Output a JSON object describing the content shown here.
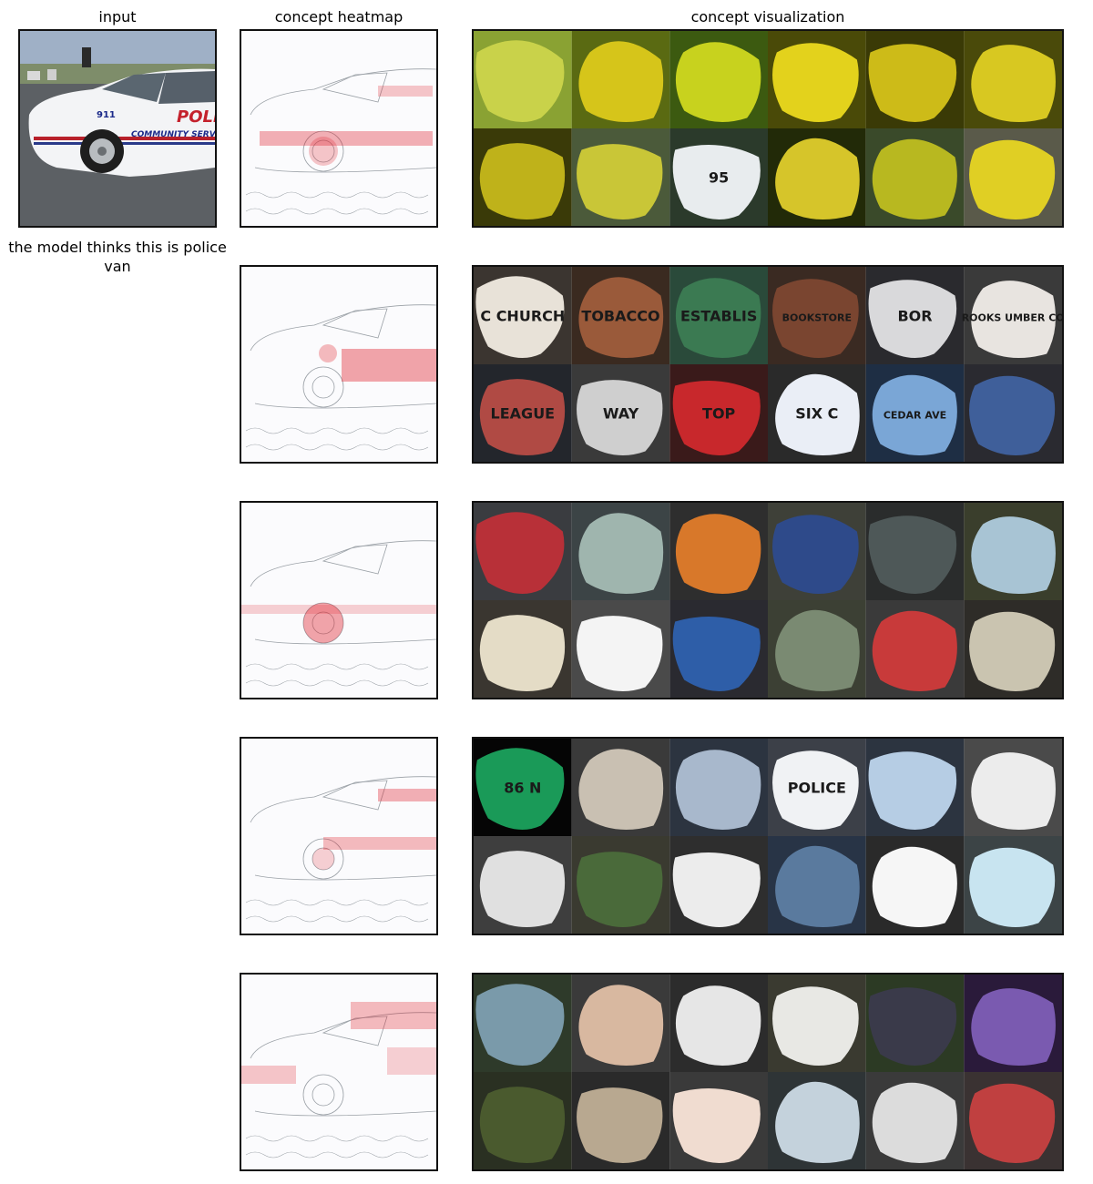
{
  "columns": {
    "input": "input",
    "heatmap": "concept heatmap",
    "visualization": "concept visualization"
  },
  "prediction_caption": "the model thinks this is police van",
  "input_image": {
    "description_icon": "police-van-photo",
    "decal_text": "POLI",
    "unit_number": "911",
    "door_text": "COMMUNITY SERVIC"
  },
  "colors": {
    "heat": "#e0202a",
    "edge": "#9aa0a6",
    "frame": "#111111"
  },
  "concepts": [
    {
      "heat_focus": "body-side",
      "tiles": [
        {
          "bg": "#8aa233",
          "blob": "#c9d24a",
          "label": ""
        },
        {
          "bg": "#5a6a12",
          "blob": "#d6c51a",
          "label": ""
        },
        {
          "bg": "#3c5a10",
          "blob": "#c8d21e",
          "label": ""
        },
        {
          "bg": "#4a4a08",
          "blob": "#e3d21c",
          "label": ""
        },
        {
          "bg": "#3a3a06",
          "blob": "#cdbb18",
          "label": ""
        },
        {
          "bg": "#4a4a0a",
          "blob": "#d8c821",
          "label": ""
        },
        {
          "bg": "#3a3a08",
          "blob": "#bfb21a",
          "label": ""
        },
        {
          "bg": "#4b5a3a",
          "blob": "#c9c637",
          "label": ""
        },
        {
          "bg": "#2b3a2b",
          "blob": "#e8ecee",
          "label": "95"
        },
        {
          "bg": "#222a08",
          "blob": "#d6c52a",
          "label": ""
        },
        {
          "bg": "#3a4a2a",
          "blob": "#b8b820",
          "label": ""
        },
        {
          "bg": "#5a5a4a",
          "blob": "#e0cf24",
          "label": ""
        }
      ]
    },
    {
      "heat_focus": "lettering",
      "tiles": [
        {
          "bg": "#3b3530",
          "blob": "#e8e2d8",
          "label": "C CHURCH"
        },
        {
          "bg": "#3a2a20",
          "blob": "#9a5a3a",
          "label": "TOBACCO"
        },
        {
          "bg": "#2a4a3a",
          "blob": "#3b7a52",
          "label": "ESTABLIS"
        },
        {
          "bg": "#3a2a22",
          "blob": "#7a4530",
          "label": "BOOKSTORE"
        },
        {
          "bg": "#2a2a2e",
          "blob": "#d9d9db",
          "label": "BOR"
        },
        {
          "bg": "#3a3a3a",
          "blob": "#e8e4e0",
          "label": "ROOKS UMBER CO"
        },
        {
          "bg": "#23262c",
          "blob": "#b04a44",
          "label": "LEAGUE"
        },
        {
          "bg": "#3a3a3a",
          "blob": "#cfcfcf",
          "label": "WAY"
        },
        {
          "bg": "#3a1a1a",
          "blob": "#c8282c",
          "label": "TOP"
        },
        {
          "bg": "#2a2a2a",
          "blob": "#eaeef6",
          "label": "SIX C"
        },
        {
          "bg": "#1e2e44",
          "blob": "#7aa6d6",
          "label": "CEDAR AVE"
        },
        {
          "bg": "#2a2a30",
          "blob": "#3f5f9a",
          "label": ""
        }
      ]
    },
    {
      "heat_focus": "wheel",
      "tiles": [
        {
          "bg": "#3a3c40",
          "blob": "#b83038",
          "label": ""
        },
        {
          "bg": "#3c4446",
          "blob": "#9fb5ae",
          "label": ""
        },
        {
          "bg": "#2e2e2e",
          "blob": "#d8782a",
          "label": ""
        },
        {
          "bg": "#3e4038",
          "blob": "#2e4a8a",
          "label": ""
        },
        {
          "bg": "#2a2c2c",
          "blob": "#4e5858",
          "label": ""
        },
        {
          "bg": "#3a3e2c",
          "blob": "#a8c4d4",
          "label": ""
        },
        {
          "bg": "#3a3630",
          "blob": "#e4dcc6",
          "label": ""
        },
        {
          "bg": "#4a4a4a",
          "blob": "#f4f4f4",
          "label": ""
        },
        {
          "bg": "#2a2a30",
          "blob": "#2e5ea8",
          "label": ""
        },
        {
          "bg": "#3c4034",
          "blob": "#7a8a72",
          "label": ""
        },
        {
          "bg": "#3a3a3a",
          "blob": "#c83a3a",
          "label": ""
        },
        {
          "bg": "#2e2c28",
          "blob": "#cac4b0",
          "label": ""
        }
      ]
    },
    {
      "heat_focus": "light-bar",
      "tiles": [
        {
          "bg": "#050505",
          "blob": "#1a9a58",
          "label": "86 N"
        },
        {
          "bg": "#3a3a3a",
          "blob": "#c9c0b2",
          "label": ""
        },
        {
          "bg": "#2c3440",
          "blob": "#a8b8cc",
          "label": ""
        },
        {
          "bg": "#3c4048",
          "blob": "#f0f2f4",
          "label": "POLICE"
        },
        {
          "bg": "#2c3440",
          "blob": "#b6cde4",
          "label": ""
        },
        {
          "bg": "#4a4a4a",
          "blob": "#ececec",
          "label": ""
        },
        {
          "bg": "#3e3e3e",
          "blob": "#e0e0e0",
          "label": ""
        },
        {
          "bg": "#3a3a30",
          "blob": "#4a6a3a",
          "label": ""
        },
        {
          "bg": "#2e2e2e",
          "blob": "#ececec",
          "label": ""
        },
        {
          "bg": "#283446",
          "blob": "#5a7a9e",
          "label": ""
        },
        {
          "bg": "#2a2a2a",
          "blob": "#f6f6f6",
          "label": ""
        },
        {
          "bg": "#3c4446",
          "blob": "#c8e4f0",
          "label": ""
        }
      ]
    },
    {
      "heat_focus": "roof-rear",
      "tiles": [
        {
          "bg": "#2e3a2a",
          "blob": "#7a9aaa",
          "label": ""
        },
        {
          "bg": "#3a3a3a",
          "blob": "#d8b8a0",
          "label": ""
        },
        {
          "bg": "#2c2c2c",
          "blob": "#e6e6e6",
          "label": ""
        },
        {
          "bg": "#3a3a30",
          "blob": "#e8e8e4",
          "label": ""
        },
        {
          "bg": "#2c3a24",
          "blob": "#3a3a4a",
          "label": ""
        },
        {
          "bg": "#2a1a3a",
          "blob": "#7a5ab0",
          "label": ""
        },
        {
          "bg": "#2a3022",
          "blob": "#4a5a2e",
          "label": ""
        },
        {
          "bg": "#2a2a2a",
          "blob": "#b8a890",
          "label": ""
        },
        {
          "bg": "#3a3a3a",
          "blob": "#f0dcd0",
          "label": ""
        },
        {
          "bg": "#2e3436",
          "blob": "#c4d2dc",
          "label": ""
        },
        {
          "bg": "#3a3a3a",
          "blob": "#dcdcdc",
          "label": ""
        },
        {
          "bg": "#3a3232",
          "blob": "#c04040",
          "label": ""
        }
      ]
    }
  ]
}
